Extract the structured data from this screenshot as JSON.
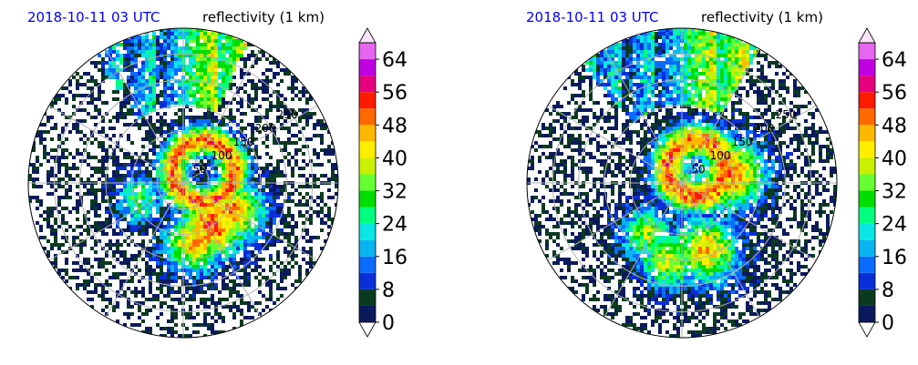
{
  "colormap": {
    "levels": [
      0,
      4,
      8,
      12,
      16,
      20,
      24,
      28,
      32,
      36,
      40,
      44,
      48,
      52,
      56,
      60,
      64,
      68
    ],
    "colors": [
      "#0a1a5c",
      "#0a3a1f",
      "#0a2fd8",
      "#0a6bff",
      "#09b5f0",
      "#0ae6e6",
      "#00ff7f",
      "#00dd00",
      "#66ff33",
      "#c8f000",
      "#ffee00",
      "#ffb800",
      "#ff6a00",
      "#ff1a00",
      "#e60080",
      "#c000e0",
      "#e566f0",
      "#f5c8f5"
    ],
    "under": "#0a1a5c",
    "over": "#fbe4fb",
    "tick_labels": [
      "0",
      "8",
      "16",
      "24",
      "32",
      "40",
      "48",
      "56",
      "64"
    ],
    "extend": "both"
  },
  "chart_data": [
    {
      "type": "heatmap",
      "projection": "polar",
      "time_label": "2018-10-11 03 UTC",
      "title": "reflectivity (1 km)",
      "time_color": "#0000ff",
      "range_rings": [
        50,
        100,
        150,
        200,
        250
      ],
      "ring_labels": [
        "50",
        "100",
        "150",
        "200",
        "250"
      ],
      "max_range": 300,
      "grid": true,
      "colorbar": {
        "label": "",
        "min": 0,
        "max": 68,
        "ticks": [
          0,
          8,
          16,
          24,
          32,
          40,
          48,
          56,
          64
        ]
      },
      "storm": {
        "center_bearing_deg": 60,
        "center_range": 45,
        "ring_range": 60,
        "ring_width": 30,
        "curtain": {
          "from_deg": 325,
          "to_deg": 25
        },
        "bands": [
          {
            "bearing_deg": 145,
            "range": 100,
            "strength": 52,
            "spread": 30
          },
          {
            "bearing_deg": 120,
            "range": 110,
            "strength": 48,
            "spread": 28
          },
          {
            "bearing_deg": 170,
            "range": 120,
            "strength": 46,
            "spread": 26
          },
          {
            "bearing_deg": 250,
            "range": 90,
            "strength": 30,
            "spread": 22
          }
        ],
        "coverage": 0.85
      }
    },
    {
      "type": "heatmap",
      "projection": "polar",
      "time_label": "2018-10-11 03 UTC",
      "title": "reflectivity (1 km)",
      "time_color": "#0000ff",
      "range_rings": [
        50,
        100,
        150,
        200,
        250
      ],
      "ring_labels": [
        "50",
        "100",
        "150",
        "200",
        "250"
      ],
      "max_range": 300,
      "grid": true,
      "colorbar": {
        "label": "",
        "min": 0,
        "max": 68,
        "ticks": [
          0,
          8,
          16,
          24,
          32,
          40,
          48,
          56,
          64
        ]
      },
      "storm": {
        "center_bearing_deg": 45,
        "center_range": 40,
        "ring_range": 55,
        "ring_width": 35,
        "curtain": {
          "from_deg": 320,
          "to_deg": 30
        },
        "bands": [
          {
            "bearing_deg": 160,
            "range": 140,
            "strength": 44,
            "spread": 30
          },
          {
            "bearing_deg": 190,
            "range": 150,
            "strength": 40,
            "spread": 26
          },
          {
            "bearing_deg": 215,
            "range": 120,
            "strength": 36,
            "spread": 24
          },
          {
            "bearing_deg": 80,
            "range": 100,
            "strength": 50,
            "spread": 30
          }
        ],
        "coverage": 0.9
      }
    }
  ]
}
